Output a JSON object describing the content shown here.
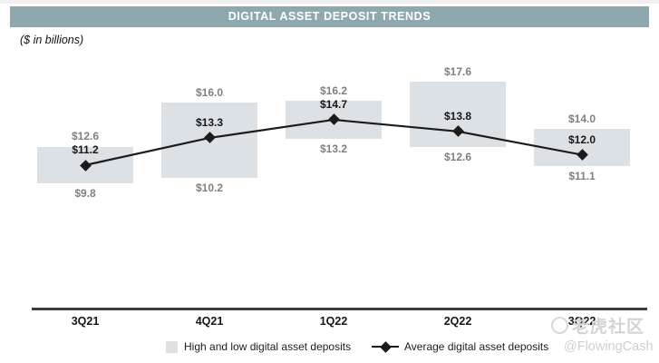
{
  "title_bar": {
    "label": "DIGITAL ASSET DEPOSIT TRENDS",
    "bg_color": "#8ea9ad"
  },
  "subtitle": "($ in billions)",
  "chart_data": {
    "type": "bar",
    "subtype": "high-low-range-bars-with-average-line",
    "title": "DIGITAL ASSET DEPOSIT TRENDS",
    "units": "$ in billions",
    "value_prefix": "$",
    "categories": [
      "3Q21",
      "4Q21",
      "1Q22",
      "2Q22",
      "3Q22"
    ],
    "series": [
      {
        "name": "High digital asset deposits",
        "values": [
          12.6,
          16.0,
          16.2,
          17.6,
          14.0
        ]
      },
      {
        "name": "Low digital asset deposits",
        "values": [
          9.8,
          10.2,
          13.2,
          12.6,
          11.1
        ]
      },
      {
        "name": "Average digital asset deposits",
        "values": [
          11.2,
          13.3,
          14.7,
          13.8,
          12.0
        ]
      }
    ],
    "ylim": [
      9.8,
      17.6
    ],
    "grid": false,
    "legend_position": "bottom",
    "bar_color": "#dce1e5",
    "line_color": "#1b1b1b",
    "high_low_label_color": "#7f7f7f",
    "average_label_color": "#171717"
  },
  "legend": {
    "high_low": "High and low digital asset deposits",
    "average": "Average digital asset deposits"
  },
  "watermark": {
    "line1": "老虎社区",
    "line2": "@FlowingCash"
  }
}
